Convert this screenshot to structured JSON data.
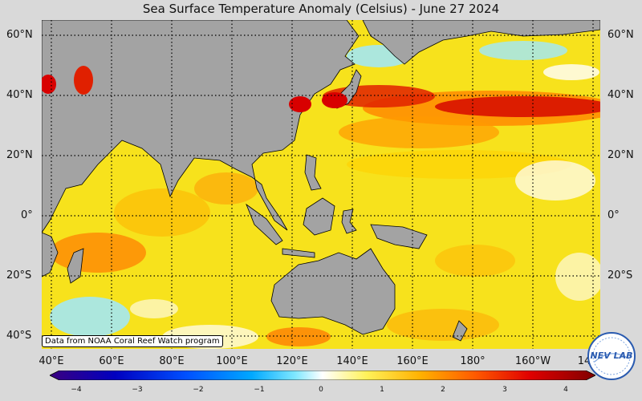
{
  "title": "Sea Surface Temperature Anomaly (Celsius) - June 27 2024",
  "credit": "Data from NOAA Coral Reef Watch program",
  "lat_labels": [
    "60°N",
    "40°N",
    "20°N",
    "0°",
    "20°S",
    "40°S"
  ],
  "lon_labels": [
    "40°E",
    "60°E",
    "80°E",
    "100°E",
    "120°E",
    "140°E",
    "160°E",
    "180°",
    "160°W",
    "14"
  ],
  "colorbar": {
    "ticks": [
      "−4",
      "−3",
      "−2",
      "−1",
      "0",
      "1",
      "2",
      "3",
      "4"
    ],
    "colors": [
      "#3a0080",
      "#0000c0",
      "#0050ff",
      "#00a8ff",
      "#80e8ff",
      "#ffffff",
      "#fff25a",
      "#ffb000",
      "#ff5a00",
      "#e00000",
      "#800000"
    ]
  },
  "logo_text": "NEV LAB",
  "colors": {
    "land": "#a3a3a3",
    "ocean_anomaly_base": "#f6e41a",
    "background": "#d9d9d9"
  }
}
